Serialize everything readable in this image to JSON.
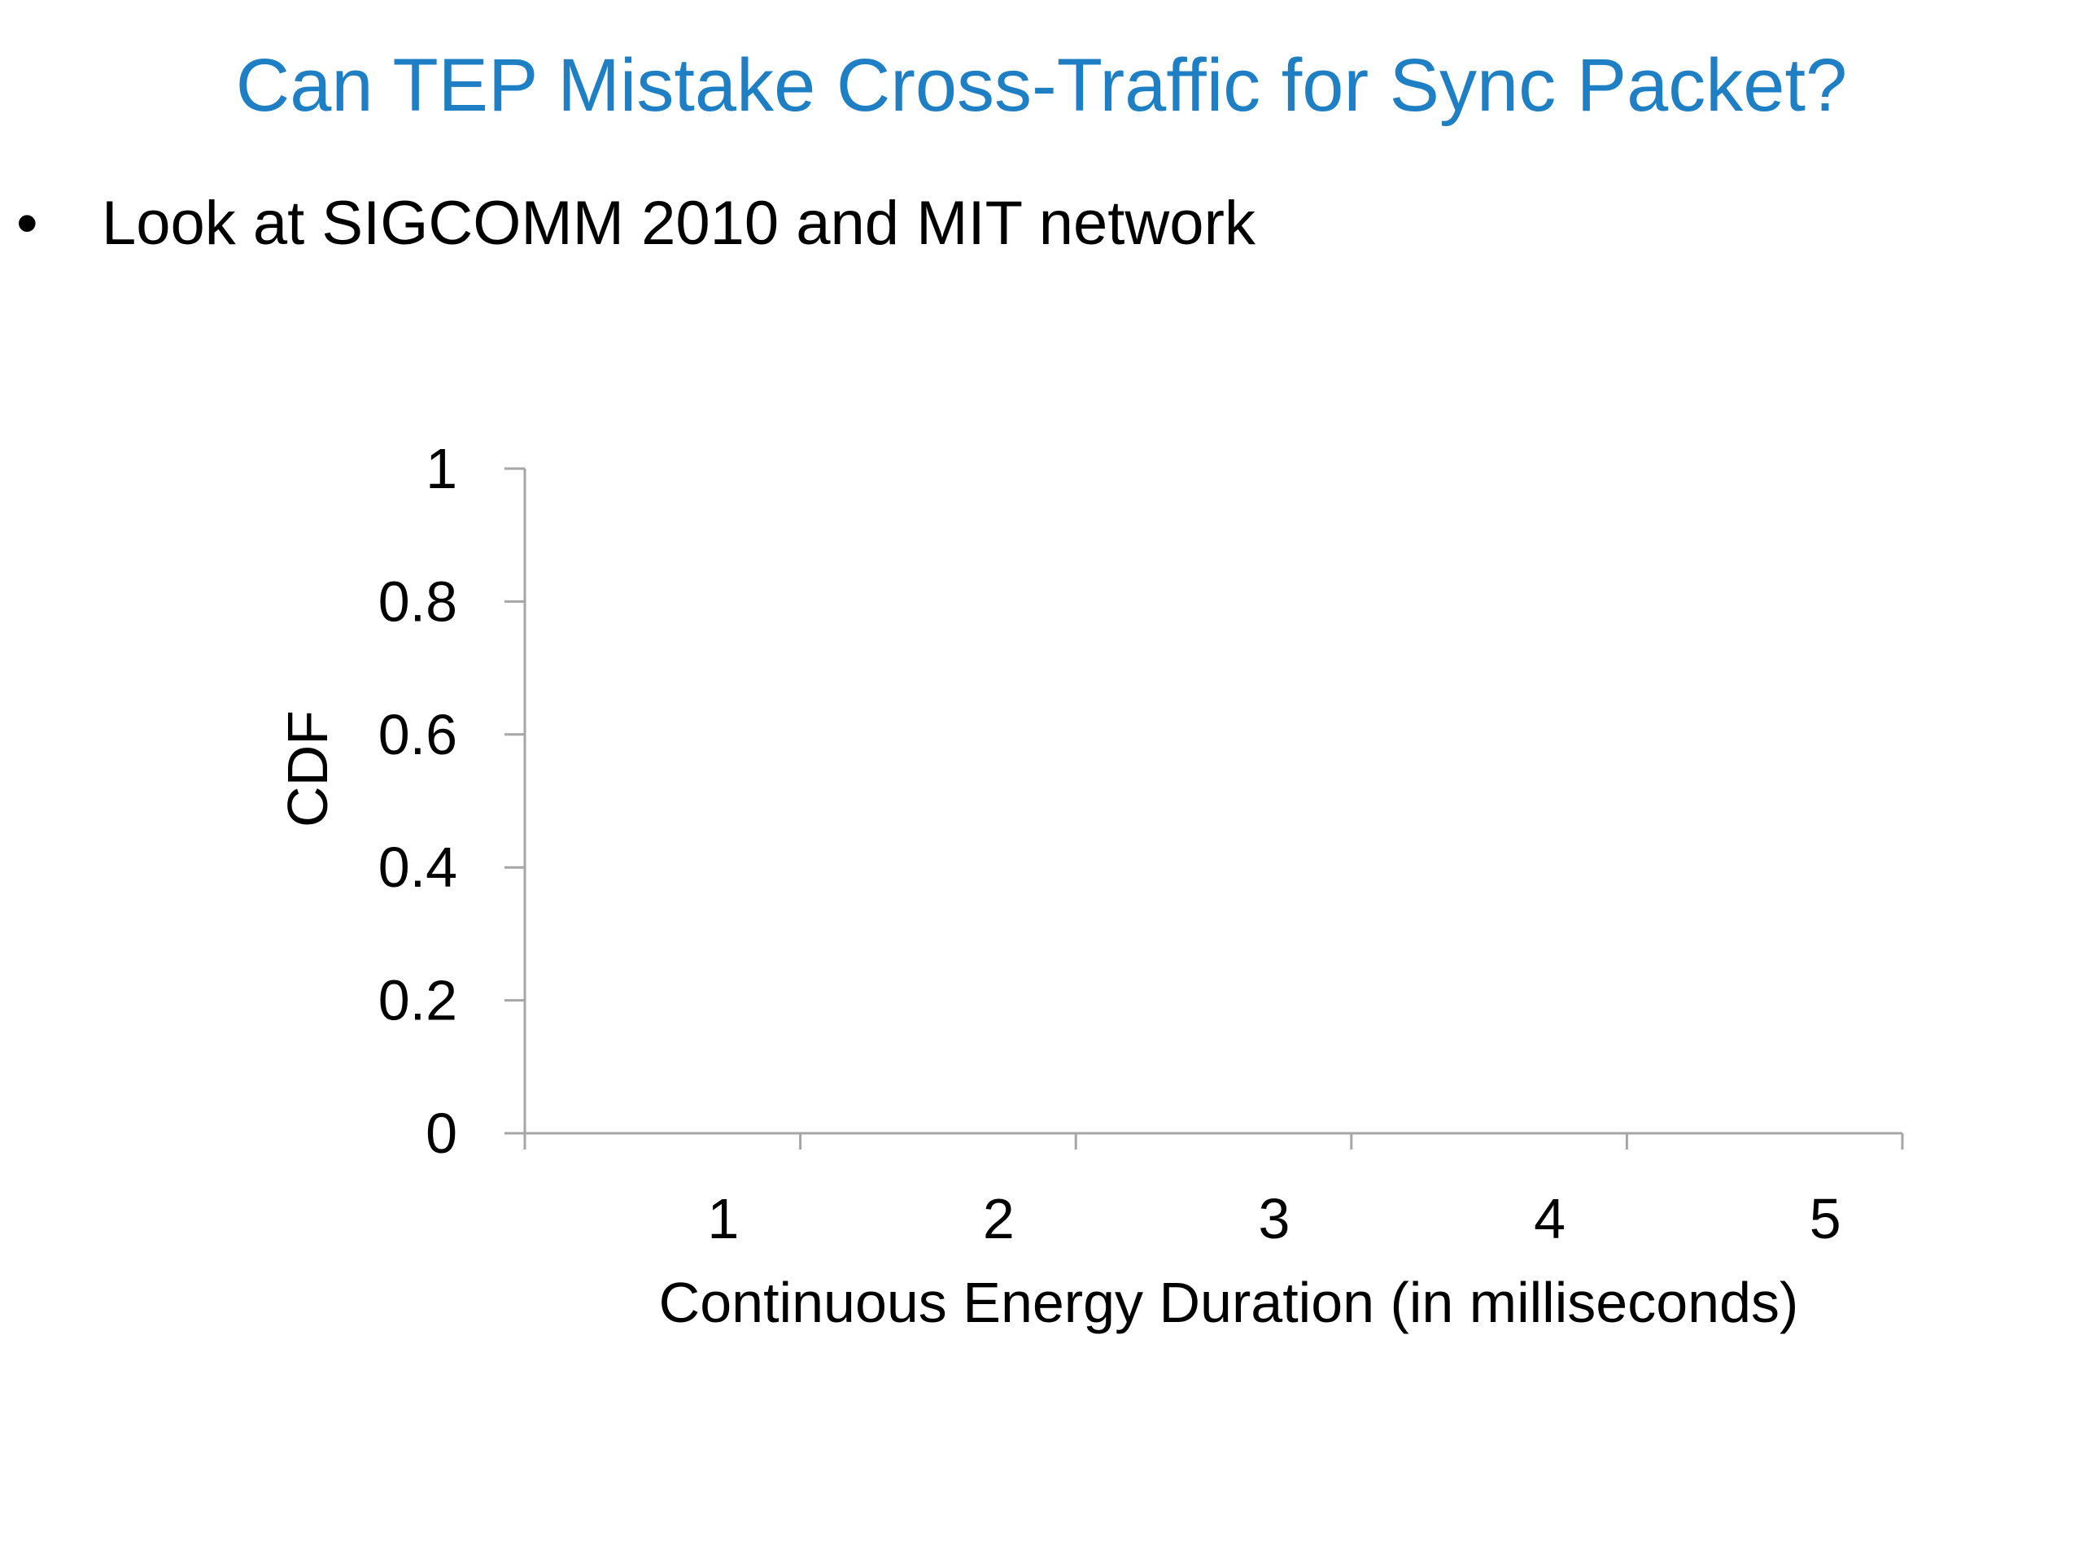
{
  "slide": {
    "title": "Can TEP Mistake Cross-Traffic for Sync Packet?",
    "title_color": "#1f7fc4",
    "bullets": [
      {
        "symbol": "•",
        "text": "Look at SIGCOMM 2010 and MIT network"
      }
    ]
  },
  "chart_data": {
    "type": "line",
    "title": "",
    "xlabel": "Continuous Energy Duration (in milliseconds)",
    "ylabel": "CDF",
    "xlim": [
      0,
      5
    ],
    "ylim": [
      0,
      1
    ],
    "x_ticks": [
      1,
      2,
      3,
      4,
      5
    ],
    "x_tick_labels": [
      "1",
      "2",
      "3",
      "4",
      "5"
    ],
    "y_ticks": [
      0,
      0.2,
      0.4,
      0.6,
      0.8,
      1
    ],
    "y_tick_labels": [
      "0",
      "0.2",
      "0.4",
      "0.6",
      "0.8",
      "1"
    ],
    "series": [],
    "grid": false,
    "legend": "none",
    "axis_color": "#a6a6a6"
  }
}
